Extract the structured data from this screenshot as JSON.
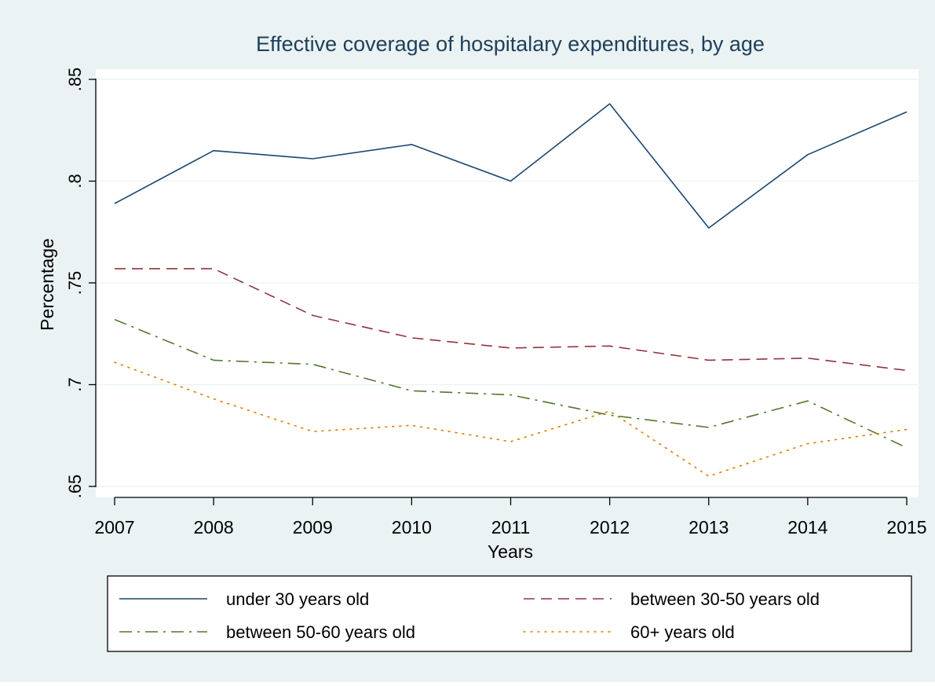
{
  "chart_data": {
    "type": "line",
    "title": "Effective coverage of hospitalary expenditures, by age",
    "xlabel": "Years",
    "ylabel": "Percentage",
    "x": [
      2007,
      2008,
      2009,
      2010,
      2011,
      2012,
      2013,
      2014,
      2015
    ],
    "x_ticks": [
      "2007",
      "2008",
      "2009",
      "2010",
      "2011",
      "2012",
      "2013",
      "2014",
      "2015"
    ],
    "y_ticks": [
      ".65",
      ".7",
      ".75",
      ".8",
      ".85"
    ],
    "y_tick_values": [
      0.65,
      0.7,
      0.75,
      0.8,
      0.85
    ],
    "xlim": [
      2007,
      2015
    ],
    "ylim": [
      0.65,
      0.85
    ],
    "grid": "horizontal",
    "legend_position": "bottom",
    "series": [
      {
        "name": "under 30 years old",
        "values": [
          0.789,
          0.815,
          0.811,
          0.818,
          0.8,
          0.838,
          0.777,
          0.813,
          0.834
        ],
        "color": "#1a476f",
        "dash": "solid"
      },
      {
        "name": "between 30-50 years old",
        "values": [
          0.757,
          0.757,
          0.734,
          0.723,
          0.718,
          0.719,
          0.712,
          0.713,
          0.707
        ],
        "color": "#90353b",
        "dash": "dash"
      },
      {
        "name": "between 50-60 years old",
        "values": [
          0.732,
          0.712,
          0.71,
          0.697,
          0.695,
          0.685,
          0.679,
          0.692,
          0.669
        ],
        "color": "#55752f",
        "dash": "dashdot"
      },
      {
        "name": "60+ years old",
        "values": [
          0.711,
          0.693,
          0.677,
          0.68,
          0.672,
          0.687,
          0.655,
          0.671,
          0.678
        ],
        "color": "#e37e00",
        "dash": "dot"
      }
    ]
  },
  "colors": {
    "outer_background": "#eaf2f3",
    "plot_background": "#ffffff",
    "gridline": "#eaf2f3",
    "axis_text": "#000000",
    "title_text": "#1e3f5a"
  }
}
